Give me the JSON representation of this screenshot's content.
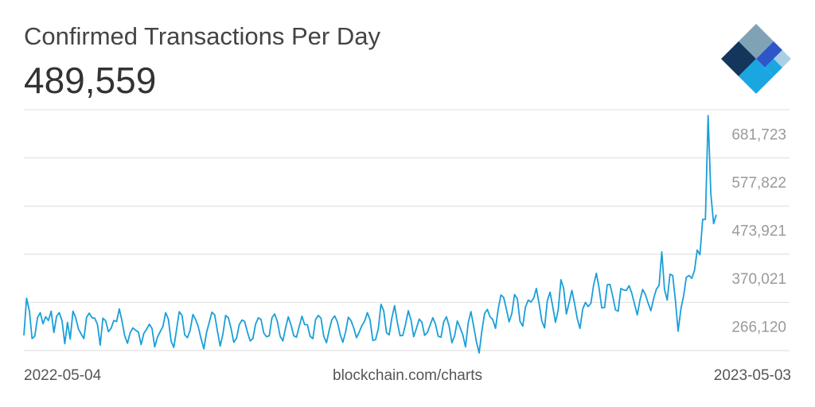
{
  "chart_data": {
    "type": "line",
    "title": "Confirmed Transactions Per Day",
    "current_value": "489,559",
    "y_ticks": [
      {
        "value": 681723,
        "label": "681,723"
      },
      {
        "value": 577822,
        "label": "577,822"
      },
      {
        "value": 473921,
        "label": "473,921"
      },
      {
        "value": 370021,
        "label": "370,021"
      },
      {
        "value": 266120,
        "label": "266,120"
      }
    ],
    "ylim": [
      214170,
      733673
    ],
    "x_start_label": "2022-05-04",
    "x_end_label": "2023-05-03",
    "grid": true,
    "color": "#1a9fd8",
    "series": [
      {
        "values": [
          247000,
          327000,
          300000,
          240000,
          245000,
          285000,
          296000,
          272000,
          287000,
          279000,
          299000,
          253000,
          288000,
          296000,
          278000,
          229000,
          275000,
          239000,
          299000,
          285000,
          261000,
          250000,
          240000,
          286000,
          295000,
          285000,
          284000,
          270000,
          226000,
          284000,
          278000,
          255000,
          262000,
          279000,
          277000,
          304000,
          278000,
          246000,
          230000,
          253000,
          263000,
          258000,
          254000,
          227000,
          251000,
          260000,
          271000,
          262000,
          222000,
          243000,
          255000,
          266000,
          296000,
          282000,
          234000,
          221000,
          259000,
          298000,
          290000,
          248000,
          242000,
          258000,
          292000,
          281000,
          265000,
          240000,
          218000,
          253000,
          275000,
          297000,
          291000,
          256000,
          224000,
          249000,
          290000,
          285000,
          262000,
          232000,
          241000,
          270000,
          280000,
          277000,
          254000,
          235000,
          240000,
          271000,
          285000,
          281000,
          252000,
          244000,
          246000,
          285000,
          293000,
          277000,
          245000,
          235000,
          263000,
          287000,
          269000,
          246000,
          243000,
          266000,
          288000,
          270000,
          270000,
          245000,
          240000,
          281000,
          290000,
          284000,
          245000,
          231000,
          258000,
          281000,
          289000,
          276000,
          250000,
          232000,
          254000,
          286000,
          279000,
          263000,
          242000,
          254000,
          268000,
          278000,
          296000,
          280000,
          236000,
          238000,
          261000,
          314000,
          300000,
          253000,
          248000,
          285000,
          311000,
          274000,
          246000,
          247000,
          271000,
          300000,
          280000,
          244000,
          262000,
          282000,
          275000,
          247000,
          253000,
          269000,
          285000,
          271000,
          245000,
          243000,
          276000,
          287000,
          267000,
          231000,
          246000,
          278000,
          264000,
          248000,
          222000,
          274000,
          298000,
          266000,
          233000,
          209000,
          256000,
          294000,
          303000,
          287000,
          281000,
          262000,
          304000,
          334000,
          329000,
          303000,
          276000,
          294000,
          335000,
          326000,
          277000,
          267000,
          308000,
          323000,
          319000,
          327000,
          348000,
          315000,
          278000,
          263000,
          321000,
          340000,
          309000,
          275000,
          301000,
          367000,
          348000,
          293000,
          317000,
          344000,
          316000,
          283000,
          262000,
          304000,
          318000,
          309000,
          316000,
          356000,
          381000,
          349000,
          306000,
          307000,
          356000,
          357000,
          332000,
          302000,
          299000,
          348000,
          345000,
          344000,
          354000,
          338000,
          315000,
          291000,
          323000,
          346000,
          335000,
          316000,
          300000,
          326000,
          346000,
          355000,
          427000,
          346000,
          323000,
          379000,
          376000,
          323000,
          256000,
          304000,
          332000,
          372000,
          376000,
          370000,
          387000,
          431000,
          421000,
          497000,
          497000,
          721000,
          553000,
          488000,
          507000
        ]
      }
    ]
  },
  "footer": {
    "left": "2022-05-04",
    "center": "blockchain.com/charts",
    "right": "2023-05-03"
  }
}
